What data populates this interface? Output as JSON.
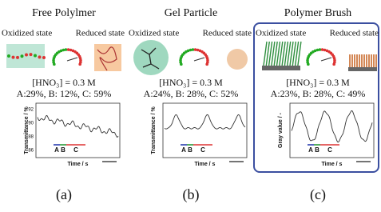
{
  "panels": [
    {
      "title": "Free Polylmer",
      "oxidized": "Oxidized state",
      "reduced": "Reduced state",
      "condition": "[HNO₃] = 0.3 M",
      "composition": "A:29%, B: 12%, C: 59%",
      "y_label": "Transmittance / %",
      "y_ticks": [
        "92",
        "90",
        "88",
        "86"
      ],
      "x_label": "Time / s",
      "segments": [
        "A",
        "B",
        "C"
      ],
      "caption": "(a)"
    },
    {
      "title": "Gel Particle",
      "oxidized": "Oxidized state",
      "reduced": "Reduced state",
      "condition": "[HNO₃] = 0.3 M",
      "composition": "A:24%, B: 28%, C: 52%",
      "y_label": "Transmittance / %",
      "x_label": "Time / s",
      "segments": [
        "A",
        "B",
        "C"
      ],
      "caption": "(b)"
    },
    {
      "title": "Polymer Brush",
      "oxidized": "Oxidized state",
      "reduced": "Reduced state",
      "condition": "[HNO₃] = 0.3 M",
      "composition": "A:23%, B: 28%, C: 49%",
      "y_label": "Gray value / -",
      "x_label": "Time / s",
      "segments": [
        "A",
        "B",
        "C"
      ],
      "caption": "(c)"
    }
  ]
}
